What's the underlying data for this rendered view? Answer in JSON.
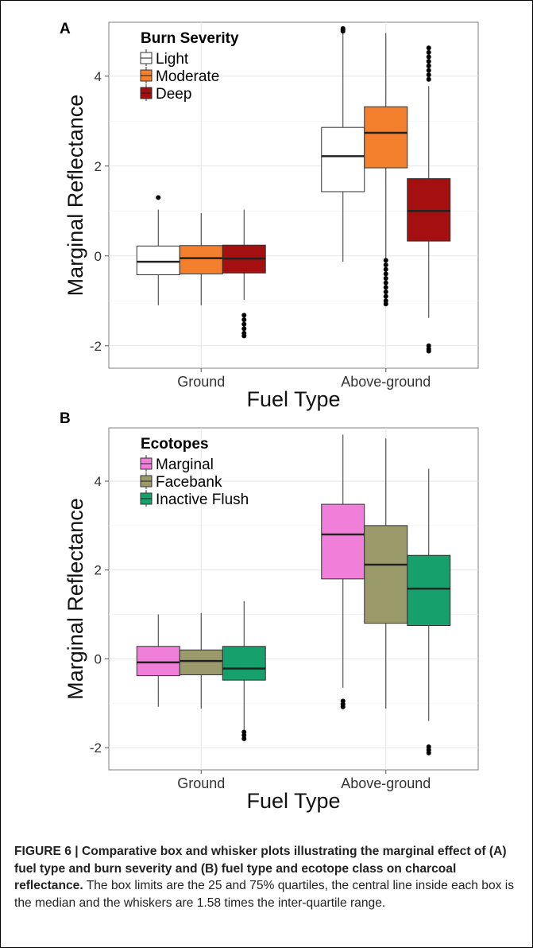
{
  "figure": {
    "caption_bold": "FIGURE 6 | Comparative box and whisker plots illustrating the marginal effect of (A) fuel type and burn severity and (B) fuel type and ecotope class on charcoal reflectance.",
    "caption_text": " The box limits are the 25 and 75% quartiles, the central line inside each box is the median and the whiskers are 1.58 times the inter-quartile range."
  },
  "chart_data": [
    {
      "type": "box",
      "panel_label": "A",
      "xlabel": "Fuel Type",
      "ylabel": "Marginal Reflectance",
      "categories": [
        "Ground",
        "Above-ground"
      ],
      "ylim": [
        -2.5,
        5.2
      ],
      "yticks": [
        -2,
        0,
        2,
        4
      ],
      "ytick_labels": [
        "-2",
        "0",
        "2",
        "4"
      ],
      "grid": true,
      "legend": {
        "title": "Burn Severity",
        "position": "top-left"
      },
      "series": [
        {
          "name": "Light",
          "color": "#ffffff",
          "boxes": [
            {
              "whisker_low": -1.1,
              "q1": -0.42,
              "median": -0.13,
              "q3": 0.22,
              "whisker_high": 1.03,
              "outliers": [
                1.3
              ]
            },
            {
              "whisker_low": -0.13,
              "q1": 1.43,
              "median": 2.22,
              "q3": 2.86,
              "whisker_high": 4.97,
              "outliers": [
                5.0,
                5.03,
                5.06
              ]
            }
          ]
        },
        {
          "name": "Moderate",
          "color": "#f47f2c",
          "boxes": [
            {
              "whisker_low": -1.1,
              "q1": -0.4,
              "median": -0.05,
              "q3": 0.23,
              "whisker_high": 0.95,
              "outliers": []
            },
            {
              "whisker_low": -0.05,
              "q1": 1.96,
              "median": 2.74,
              "q3": 3.32,
              "whisker_high": 4.96,
              "outliers": [
                -0.1,
                -0.2,
                -0.3,
                -0.4,
                -0.5,
                -0.6,
                -0.7,
                -0.8,
                -0.9,
                -1.0,
                -1.07
              ]
            }
          ]
        },
        {
          "name": "Deep",
          "color": "#a50f0f",
          "boxes": [
            {
              "whisker_low": -0.98,
              "q1": -0.38,
              "median": -0.06,
              "q3": 0.24,
              "whisker_high": 1.03,
              "outliers": [
                -1.32,
                -1.42,
                -1.52,
                -1.62,
                -1.72,
                -1.78
              ]
            },
            {
              "whisker_low": -1.38,
              "q1": 0.33,
              "median": 1.0,
              "q3": 1.72,
              "whisker_high": 3.78,
              "outliers": [
                3.93,
                4.03,
                4.13,
                4.23,
                4.33,
                4.43,
                4.53,
                4.63,
                -2.0,
                -2.07,
                -2.12
              ]
            }
          ]
        }
      ]
    },
    {
      "type": "box",
      "panel_label": "B",
      "xlabel": "Fuel Type",
      "ylabel": "Marginal Reflectance",
      "categories": [
        "Ground",
        "Above-ground"
      ],
      "ylim": [
        -2.5,
        5.2
      ],
      "yticks": [
        -2,
        0,
        2,
        4
      ],
      "ytick_labels": [
        "-2",
        "0",
        "2",
        "4"
      ],
      "grid": true,
      "legend": {
        "title": "Ecotopes",
        "position": "top-left"
      },
      "series": [
        {
          "name": "Marginal",
          "color": "#ef7fd9",
          "boxes": [
            {
              "whisker_low": -1.08,
              "q1": -0.38,
              "median": -0.08,
              "q3": 0.28,
              "whisker_high": 1.0,
              "outliers": []
            },
            {
              "whisker_low": -0.65,
              "q1": 1.8,
              "median": 2.8,
              "q3": 3.48,
              "whisker_high": 5.05,
              "outliers": [
                -0.95,
                -1.02,
                -1.08
              ]
            }
          ]
        },
        {
          "name": "Facebank",
          "color": "#9b9a6a",
          "boxes": [
            {
              "whisker_low": -1.12,
              "q1": -0.36,
              "median": -0.05,
              "q3": 0.2,
              "whisker_high": 1.03,
              "outliers": []
            },
            {
              "whisker_low": -1.12,
              "q1": 0.8,
              "median": 2.12,
              "q3": 3.0,
              "whisker_high": 4.96,
              "outliers": []
            }
          ]
        },
        {
          "name": "Inactive Flush",
          "color": "#16a06b",
          "boxes": [
            {
              "whisker_low": -1.6,
              "q1": -0.48,
              "median": -0.22,
              "q3": 0.28,
              "whisker_high": 1.3,
              "outliers": [
                -1.65,
                -1.72,
                -1.8
              ]
            },
            {
              "whisker_low": -1.4,
              "q1": 0.75,
              "median": 1.58,
              "q3": 2.33,
              "whisker_high": 4.28,
              "outliers": [
                -1.98,
                -2.05,
                -2.12
              ]
            }
          ]
        }
      ]
    }
  ]
}
